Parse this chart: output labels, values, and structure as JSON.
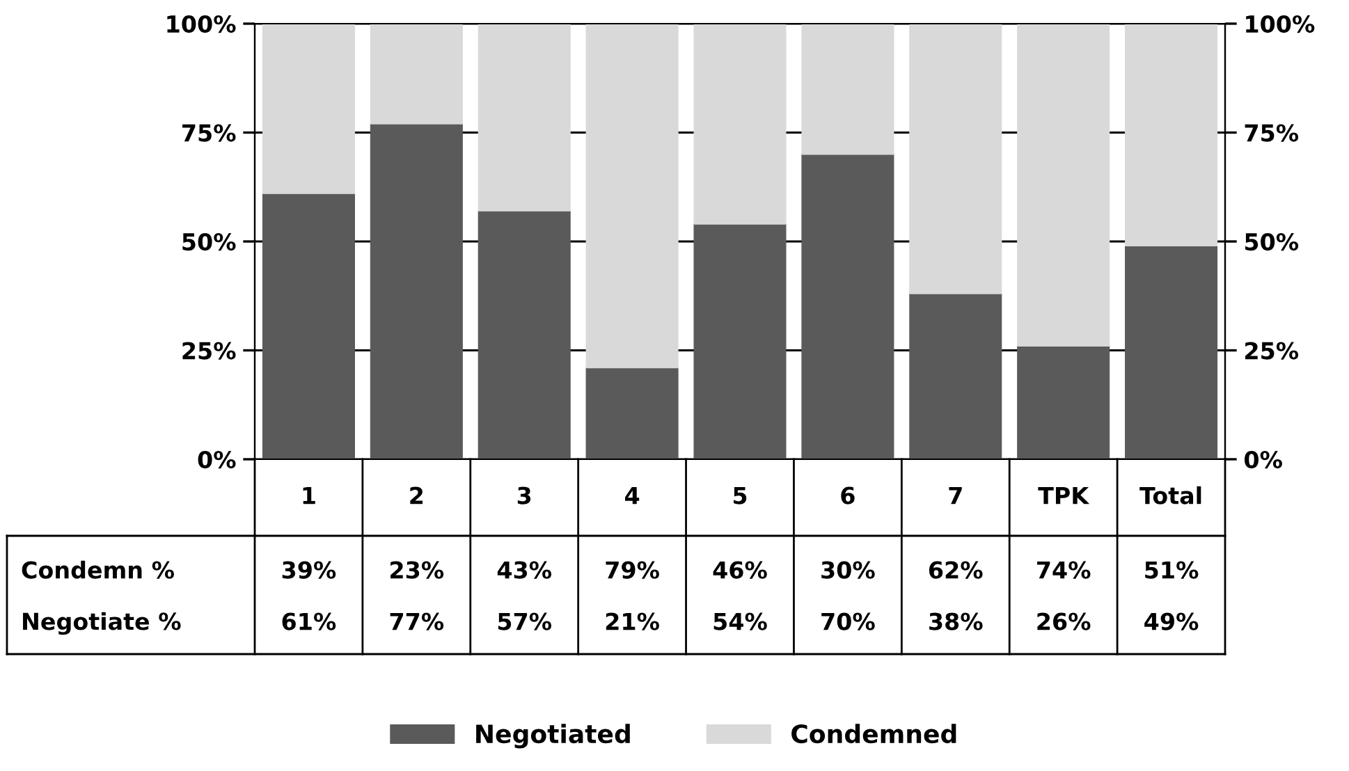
{
  "chart_data": {
    "type": "bar",
    "stacked": true,
    "categories": [
      "1",
      "2",
      "3",
      "4",
      "5",
      "6",
      "7",
      "TPK",
      "Total"
    ],
    "series": [
      {
        "name": "Negotiated",
        "color": "#5a5a5a",
        "values": [
          61,
          77,
          57,
          21,
          54,
          70,
          38,
          26,
          49
        ],
        "value_labels": [
          "61%",
          "77%",
          "57%",
          "21%",
          "54%",
          "70%",
          "38%",
          "26%",
          "49%"
        ]
      },
      {
        "name": "Condemned",
        "color": "#d9d9d9",
        "values": [
          39,
          23,
          43,
          79,
          46,
          30,
          62,
          74,
          51
        ],
        "value_labels": [
          "39%",
          "23%",
          "43%",
          "79%",
          "46%",
          "30%",
          "62%",
          "74%",
          "51%"
        ]
      }
    ],
    "annotations": [
      "Condemn %",
      "Negotiate %"
    ],
    "ylim": [
      0,
      100
    ],
    "yticks": [
      {
        "value": 0,
        "label": "0%"
      },
      {
        "value": 25,
        "label": "25%"
      },
      {
        "value": 50,
        "label": "50%"
      },
      {
        "value": 75,
        "label": "75%"
      },
      {
        "value": 100,
        "label": "100%"
      }
    ],
    "y2lim": [
      0,
      100
    ],
    "y2ticks": [
      {
        "value": 0,
        "label": "0%"
      },
      {
        "value": 25,
        "label": "25%"
      },
      {
        "value": 50,
        "label": "50%"
      },
      {
        "value": 75,
        "label": "75%"
      },
      {
        "value": 100,
        "label": "100%"
      }
    ],
    "grid": "y",
    "legend": "bottom"
  }
}
